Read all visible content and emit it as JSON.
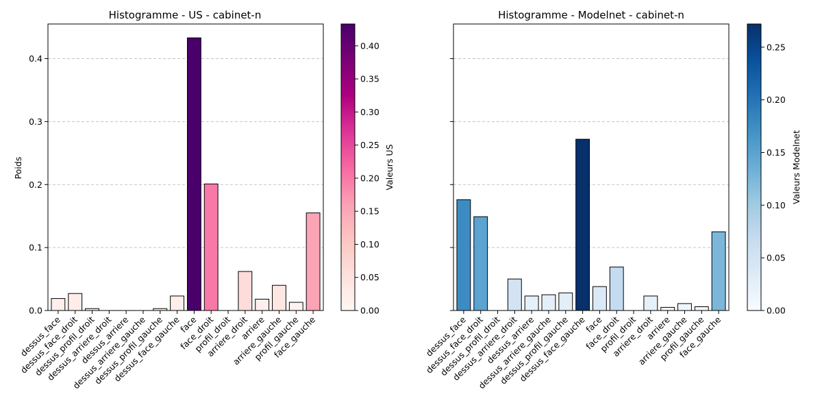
{
  "chart_data": [
    {
      "type": "bar",
      "title": "Histogramme - US - cabinet-n",
      "ylabel": "Poids",
      "xlabel": "",
      "ylim": [
        0,
        0.455
      ],
      "yticks": [
        "0.0",
        "0.1",
        "0.2",
        "0.3",
        "0.4"
      ],
      "grid": "y-dashed",
      "categories": [
        "dessus_face",
        "dessus_face_droit",
        "dessus_profil_droit",
        "dessus_arriere_droit",
        "dessus_arriere",
        "dessus_arriere_gauche",
        "dessus_profil_gauche",
        "dessus_face_gauche",
        "face",
        "face_droit",
        "profil_droit",
        "arriere_droit",
        "arriere",
        "arriere_gauche",
        "profil_gauche",
        "face_gauche"
      ],
      "values": [
        0.019,
        0.027,
        0.003,
        0.0,
        0.0,
        0.0,
        0.003,
        0.023,
        0.433,
        0.201,
        0.0,
        0.062,
        0.018,
        0.04,
        0.013,
        0.155
      ],
      "colorbar": {
        "label": "Valeurs US",
        "colormap": "RdPu",
        "range": [
          0,
          0.433
        ],
        "ticks": [
          "0.00",
          "0.05",
          "0.10",
          "0.15",
          "0.20",
          "0.25",
          "0.30",
          "0.35",
          "0.40"
        ],
        "stops": [
          "#fff7f3",
          "#fde0dd",
          "#fcc5c0",
          "#fa9fb5",
          "#f768a1",
          "#dd3497",
          "#ae017e",
          "#7a0177",
          "#49006a"
        ]
      }
    },
    {
      "type": "bar",
      "title": "Histogramme - Modelnet - cabinet-n",
      "ylabel": "",
      "xlabel": "",
      "ylim": [
        0,
        0.455
      ],
      "grid": "y-dashed",
      "categories": [
        "dessus_face",
        "dessus_face_droit",
        "dessus_profil_droit",
        "dessus_arriere_droit",
        "dessus_arriere",
        "dessus_arriere_gauche",
        "dessus_profil_gauche",
        "dessus_face_gauche",
        "face",
        "face_droit",
        "profil_droit",
        "arriere_droit",
        "arriere",
        "arriere_gauche",
        "profil_gauche",
        "face_gauche"
      ],
      "values": [
        0.176,
        0.149,
        0.0,
        0.05,
        0.023,
        0.025,
        0.028,
        0.272,
        0.038,
        0.069,
        0.0,
        0.023,
        0.005,
        0.011,
        0.006,
        0.125
      ],
      "colorbar": {
        "label": "Valeurs Modelnet",
        "colormap": "Blues",
        "range": [
          0,
          0.272
        ],
        "ticks": [
          "0.00",
          "0.05",
          "0.10",
          "0.15",
          "0.20",
          "0.25"
        ],
        "stops": [
          "#f7fbff",
          "#deebf7",
          "#c6dbef",
          "#9ecae1",
          "#6baed6",
          "#4292c6",
          "#2171b5",
          "#08519c",
          "#08306b"
        ]
      }
    }
  ]
}
